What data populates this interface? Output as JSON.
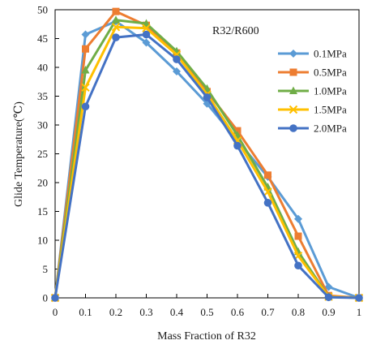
{
  "chart_data": {
    "type": "line",
    "title": "",
    "annotation": "R32/R600",
    "xlabel": "Mass Fraction of R32",
    "ylabel": "Glide Temperature(℃)",
    "xlim": [
      0,
      1
    ],
    "ylim": [
      0,
      50
    ],
    "x_ticks": [
      0,
      0.1,
      0.2,
      0.3,
      0.4,
      0.5,
      0.6,
      0.7,
      0.8,
      0.9,
      1
    ],
    "y_ticks": [
      0,
      5,
      10,
      15,
      20,
      25,
      30,
      35,
      40,
      45,
      50
    ],
    "grid": false,
    "legend_position": "right",
    "x": [
      0,
      0.1,
      0.2,
      0.3,
      0.4,
      0.5,
      0.6,
      0.7,
      0.8,
      0.9,
      1
    ],
    "series": [
      {
        "name": "0.1MPa",
        "color": "#5b9bd5",
        "marker": "diamond",
        "values": [
          0,
          45.7,
          48.0,
          44.3,
          39.3,
          33.7,
          27.3,
          21.0,
          13.7,
          1.9,
          0
        ]
      },
      {
        "name": "0.5MPa",
        "color": "#ed7d31",
        "marker": "square",
        "values": [
          0,
          43.2,
          49.7,
          47.3,
          42.5,
          35.8,
          29.0,
          21.3,
          10.7,
          0.4,
          0
        ]
      },
      {
        "name": "1.0MPa",
        "color": "#70ad47",
        "marker": "triangle",
        "values": [
          0,
          39.5,
          48.2,
          47.6,
          42.8,
          36.3,
          28.2,
          19.2,
          8.0,
          0.2,
          0
        ]
      },
      {
        "name": "1.5MPa",
        "color": "#ffc000",
        "marker": "x",
        "values": [
          0,
          36.5,
          47.0,
          46.8,
          42.2,
          35.3,
          27.3,
          18.4,
          7.3,
          0.2,
          0
        ]
      },
      {
        "name": "2.0MPa",
        "color": "#4472c4",
        "marker": "circle",
        "values": [
          0,
          33.2,
          45.2,
          45.7,
          41.4,
          34.8,
          26.4,
          16.5,
          5.6,
          0.1,
          0
        ]
      }
    ]
  }
}
